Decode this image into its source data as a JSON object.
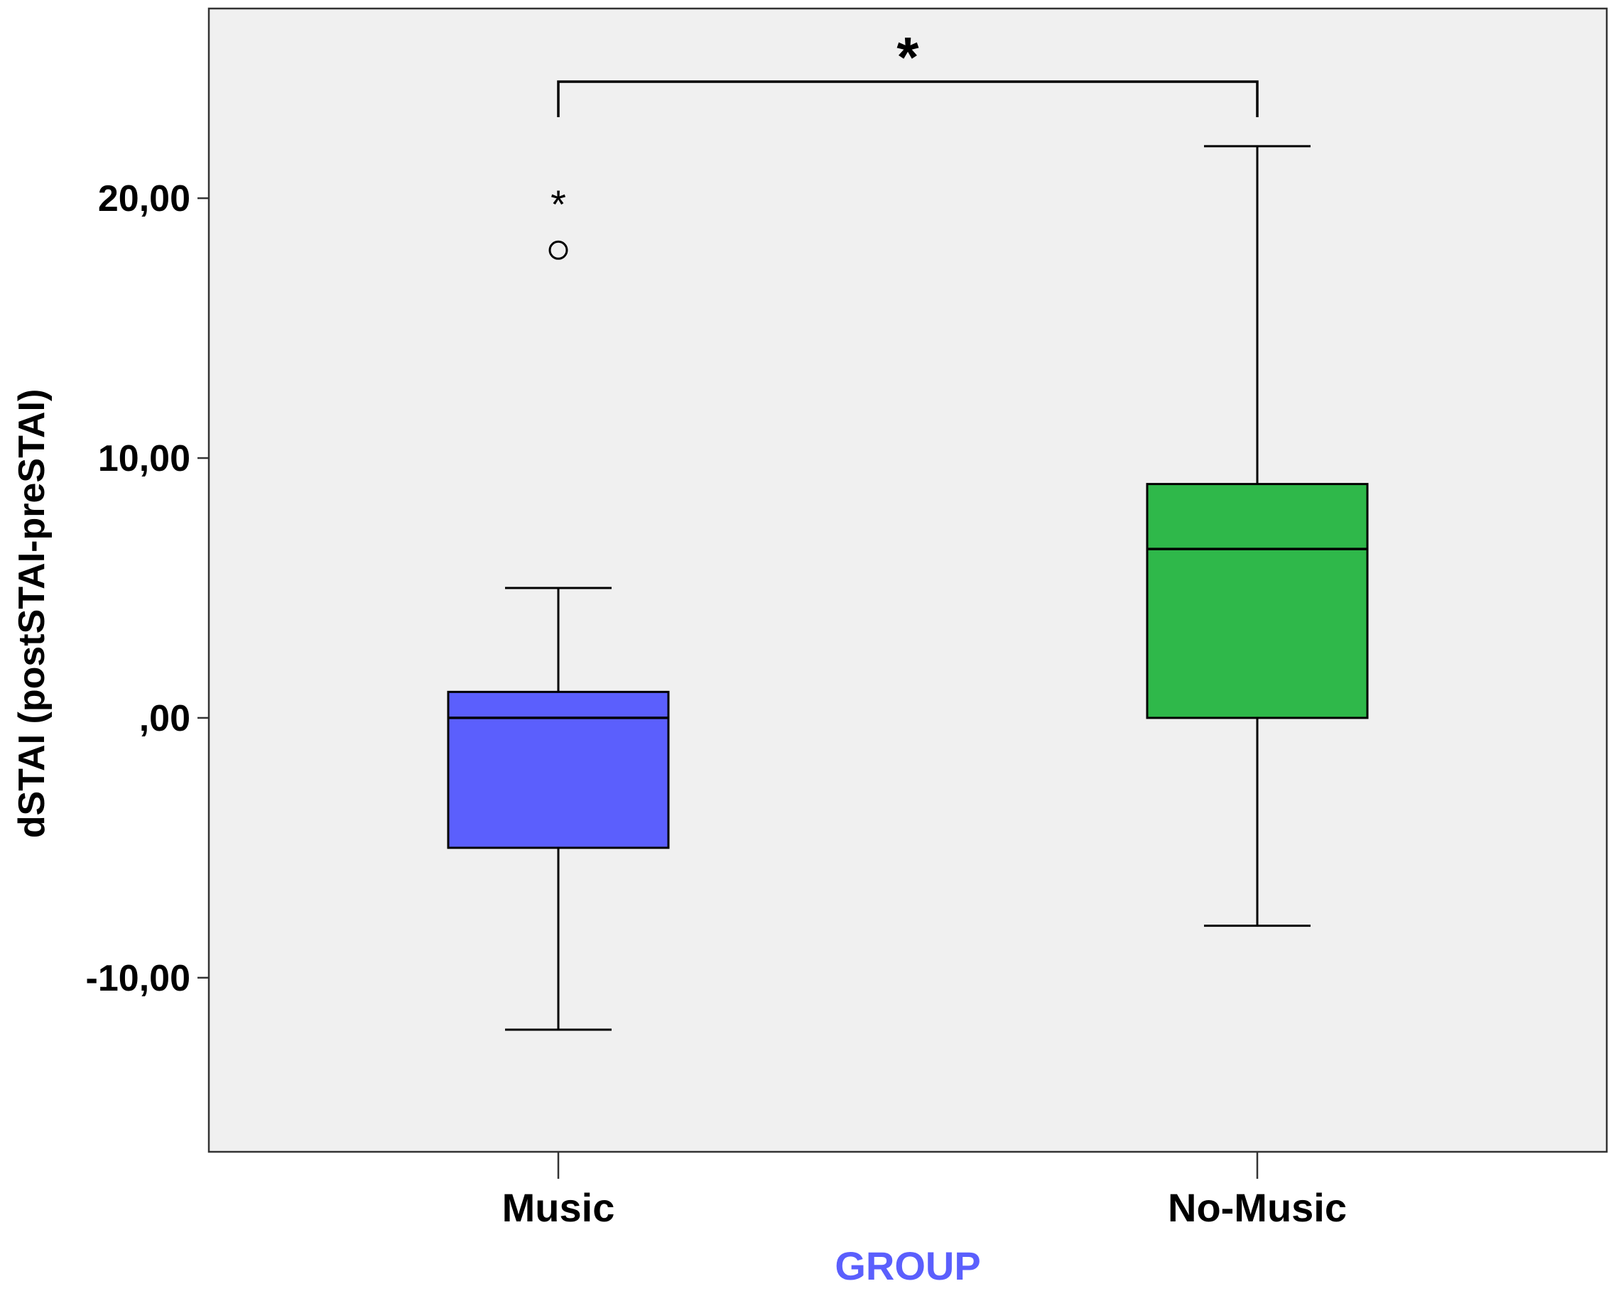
{
  "chart_data": {
    "type": "box",
    "xlabel": "GROUP",
    "ylabel": "dSTAI (postSTAI-preSTAI)",
    "ylim": [
      -16.7,
      27.3
    ],
    "yticks": [
      -10,
      0,
      10,
      20
    ],
    "ytick_labels": [
      "-10,00",
      ",00",
      "10,00",
      "20,00"
    ],
    "grid": false,
    "categories": [
      "Music",
      "No-Music"
    ],
    "series": [
      {
        "category": "Music",
        "whisker_low": -12,
        "q1": -5,
        "median": 0,
        "q3": 1,
        "whisker_high": 5,
        "outliers": [
          {
            "value": 20,
            "marker": "*"
          },
          {
            "value": 18,
            "marker": "o"
          }
        ],
        "color": "#5b5ffd"
      },
      {
        "category": "No-Music",
        "whisker_low": -8,
        "q1": 0,
        "median": 6.5,
        "q3": 9,
        "whisker_high": 22,
        "outliers": [],
        "color": "#2fb84a"
      }
    ],
    "annotations": [
      {
        "type": "significance-bracket",
        "between": [
          "Music",
          "No-Music"
        ],
        "label": "*"
      }
    ],
    "colors": {
      "plot_background": "#f0f0f0",
      "axis": "#333333",
      "xlabel": "#5b5ffd"
    }
  }
}
